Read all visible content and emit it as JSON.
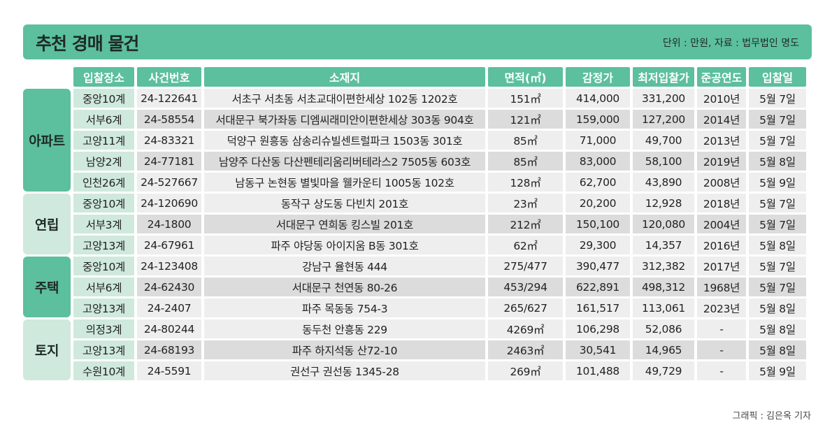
{
  "title": "추천 경매 물건",
  "unit_note": "단위 : 만원, 자료 : 법무법인 명도",
  "credit": "그래픽 : 김은옥 기자",
  "colors": {
    "header": "#5cbf9e",
    "branch_cell": "#cfe9dd",
    "row_dark": "#dcdcdc",
    "row_light": "#eeeeee"
  },
  "headers": [
    "입찰장소",
    "사건번호",
    "소재지",
    "면적(㎡)",
    "감정가",
    "최저입찰가",
    "준공연도",
    "입찰일"
  ],
  "groups": [
    {
      "category": "아파트",
      "rows": [
        [
          "중앙10계",
          "24-122641",
          "서초구 서초동 서초교대이편한세상 102동 1202호",
          "151㎡",
          "414,000",
          "331,200",
          "2010년",
          "5월 7일"
        ],
        [
          "서부6계",
          "24-58554",
          "서대문구 북가좌동 디엠씨래미안이편한세상 303동 904호",
          "121㎡",
          "159,000",
          "127,200",
          "2014년",
          "5월 7일"
        ],
        [
          "고양11계",
          "24-83321",
          "덕양구 원흥동 삼송리슈빌센트럴파크 1503동 301호",
          "85㎡",
          "71,000",
          "49,700",
          "2013년",
          "5월 7일"
        ],
        [
          "남양2계",
          "24-77181",
          "남양주 다산동 다산펜테리움리버테라스2 7505동 603호",
          "85㎡",
          "83,000",
          "58,100",
          "2019년",
          "5월 8일"
        ],
        [
          "인천26계",
          "24-527667",
          "남동구 논현동 별빛마을 웰카운티 1005동 102호",
          "128㎡",
          "62,700",
          "43,890",
          "2008년",
          "5월 9일"
        ]
      ]
    },
    {
      "category": "연립",
      "rows": [
        [
          "중앙10계",
          "24-120690",
          "동작구 상도동 다빈치 201호",
          "23㎡",
          "20,200",
          "12,928",
          "2018년",
          "5월 7일"
        ],
        [
          "서부3계",
          "24-1800",
          "서대문구 연희동 킹스빌 201호",
          "212㎡",
          "150,100",
          "120,080",
          "2004년",
          "5월 7일"
        ],
        [
          "고양13계",
          "24-67961",
          "파주 야당동 아이지움 B동 301호",
          "62㎡",
          "29,300",
          "14,357",
          "2016년",
          "5월 8일"
        ]
      ]
    },
    {
      "category": "주택",
      "rows": [
        [
          "중앙10계",
          "24-123408",
          "강남구 율현동 444",
          "275/477",
          "390,477",
          "312,382",
          "2017년",
          "5월 7일"
        ],
        [
          "서부6계",
          "24-62430",
          "서대문구 천연동 80-26",
          "453/294",
          "622,891",
          "498,312",
          "1968년",
          "5월 7일"
        ],
        [
          "고양13계",
          "24-2407",
          "파주 목동동 754-3",
          "265/627",
          "161,517",
          "113,061",
          "2023년",
          "5월 8일"
        ]
      ]
    },
    {
      "category": "토지",
      "rows": [
        [
          "의정3계",
          "24-80244",
          "동두천 안흥동 229",
          "4269㎡",
          "106,298",
          "52,086",
          "-",
          "5월 8일"
        ],
        [
          "고양13계",
          "24-68193",
          "파주 하지석동 산72-10",
          "2463㎡",
          "30,541",
          "14,965",
          "-",
          "5월 8일"
        ],
        [
          "수원10계",
          "24-5591",
          "권선구 권선동 1345-28",
          "269㎡",
          "101,488",
          "49,729",
          "-",
          "5월 9일"
        ]
      ]
    }
  ]
}
